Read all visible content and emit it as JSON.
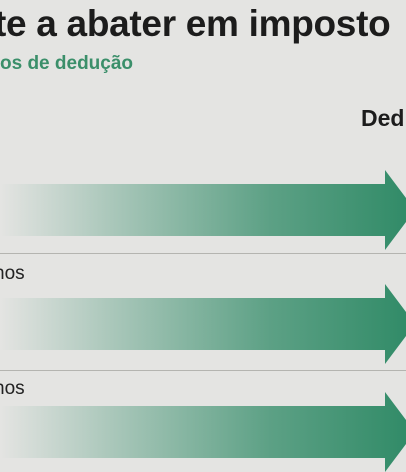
{
  "header": {
    "title": "te a abater em imposto",
    "subtitle": "os de dedução"
  },
  "column_header": "Ded",
  "rows": [
    {
      "label": "nos"
    },
    {
      "label": "nos"
    }
  ],
  "colors": {
    "background": "#e4e4e2",
    "accent_green": "#2f8a66",
    "subtitle_green": "#3b8f6a",
    "text": "#1c1c1c"
  }
}
